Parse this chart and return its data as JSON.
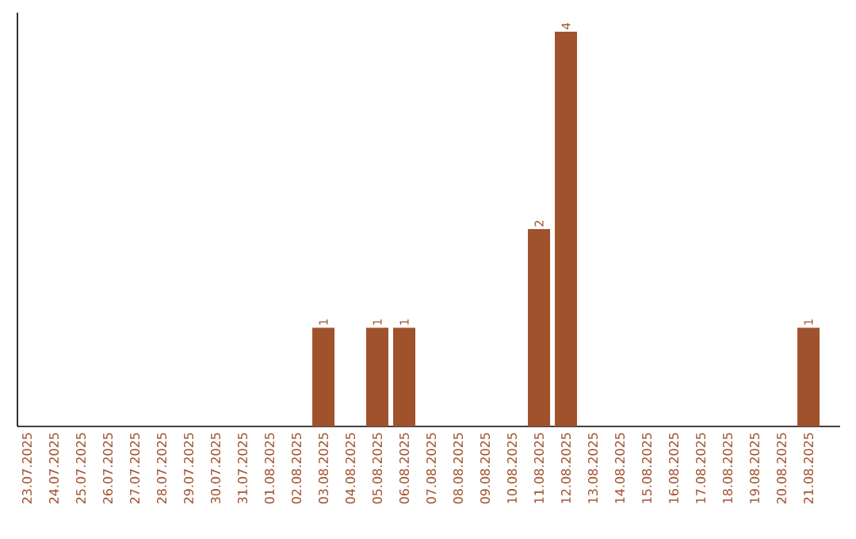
{
  "chart_data": {
    "type": "bar",
    "categories": [
      "23.07.2025",
      "24.07.2025",
      "25.07.2025",
      "26.07.2025",
      "27.07.2025",
      "28.07.2025",
      "29.07.2025",
      "30.07.2025",
      "31.07.2025",
      "01.08.2025",
      "02.08.2025",
      "03.08.2025",
      "04.08.2025",
      "05.08.2025",
      "06.08.2025",
      "07.08.2025",
      "08.08.2025",
      "09.08.2025",
      "10.08.2025",
      "11.08.2025",
      "12.08.2025",
      "13.08.2025",
      "14.08.2025",
      "15.08.2025",
      "16.08.2025",
      "17.08.2025",
      "18.08.2025",
      "19.08.2025",
      "20.08.2025",
      "21.08.2025"
    ],
    "values": [
      0,
      0,
      0,
      0,
      0,
      0,
      0,
      0,
      0,
      0,
      0,
      1,
      0,
      1,
      1,
      0,
      0,
      0,
      0,
      2,
      4,
      0,
      0,
      0,
      0,
      0,
      0,
      0,
      0,
      1
    ],
    "value_labels": [
      null,
      null,
      null,
      null,
      null,
      null,
      null,
      null,
      null,
      null,
      null,
      "1",
      null,
      "1",
      "1",
      null,
      null,
      null,
      null,
      "2",
      "4",
      null,
      null,
      null,
      null,
      null,
      null,
      null,
      null,
      "1"
    ],
    "color": "#a0522d"
  }
}
